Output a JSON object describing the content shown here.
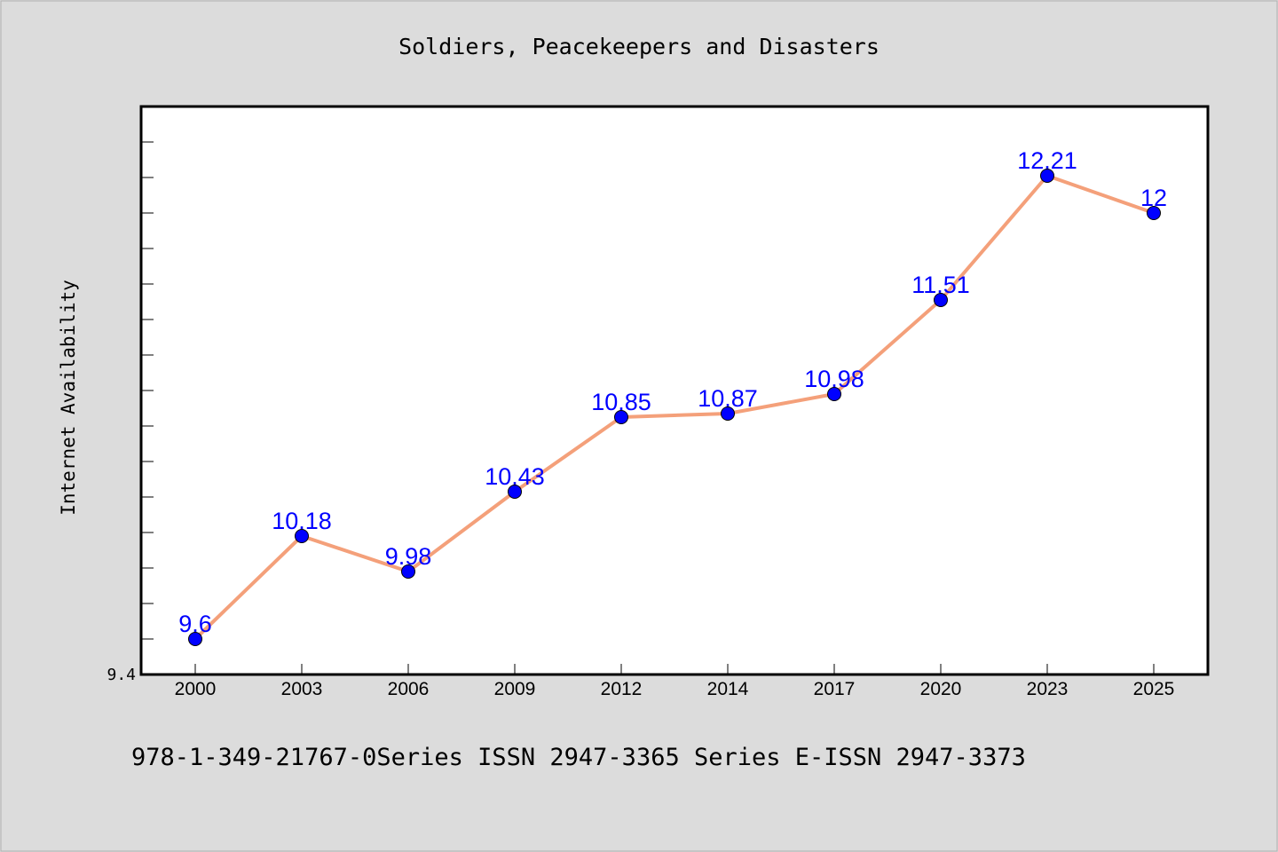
{
  "chart_data": {
    "type": "line",
    "title": "Soldiers, Peacekeepers and Disasters",
    "xlabel": "",
    "ylabel": "Internet Availability",
    "categories": [
      "2000",
      "2003",
      "2006",
      "2009",
      "2012",
      "2014",
      "2017",
      "2020",
      "2023",
      "2025"
    ],
    "series": [
      {
        "values": [
          9.6,
          10.18,
          9.98,
          10.43,
          10.85,
          10.87,
          10.98,
          11.51,
          12.21,
          12.0
        ],
        "value_labels": [
          "9.6",
          "10.18",
          "9.98",
          "10.43",
          "10.85",
          "10.87",
          "10.98",
          "11.51",
          "12.21",
          "12"
        ],
        "line_color": "#f4a07a",
        "marker_color": "#0000ff"
      }
    ],
    "ylim": [
      9.4,
      12.6
    ],
    "y_tick_labels": [
      {
        "value": 9.4,
        "label": "9.4"
      }
    ],
    "y_minor_step": 0.2,
    "grid": false,
    "legend": "none",
    "colors": {
      "background": "#dcdcdc",
      "plot_background": "#ffffff",
      "axis": "#000000",
      "label_text": "#0000ff"
    }
  },
  "footer_text": "978-1-349-21767-0Series ISSN 2947-3365 Series E-ISSN 2947-3373"
}
